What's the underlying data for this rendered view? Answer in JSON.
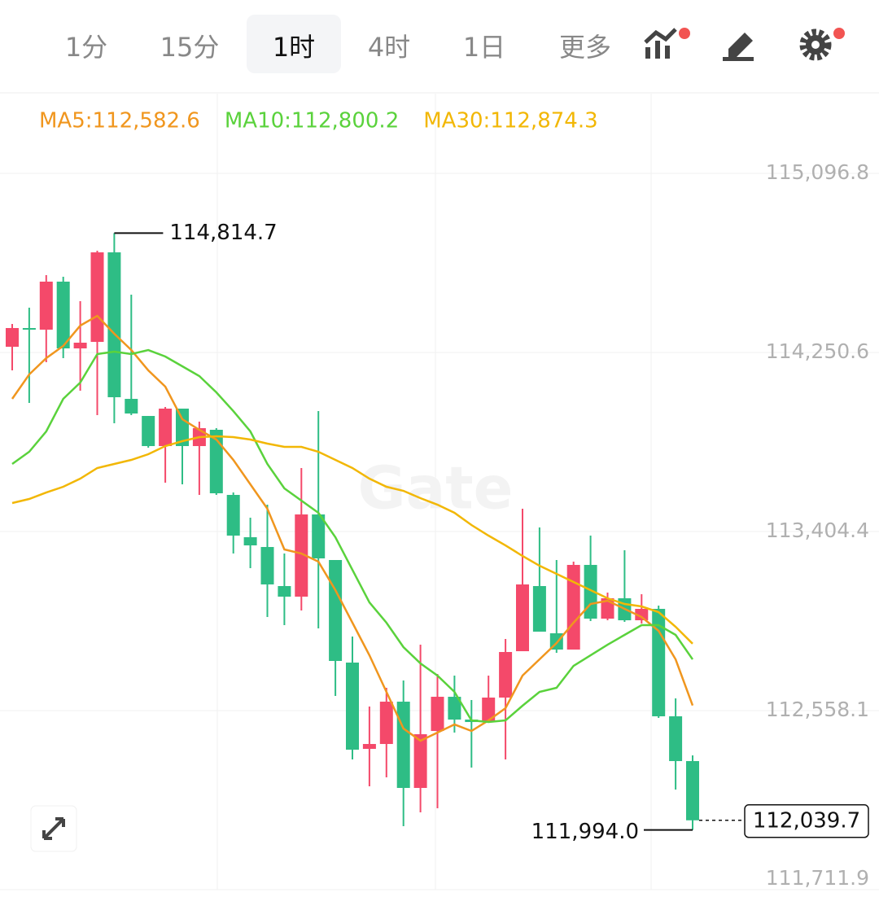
{
  "tabs": {
    "items": [
      "1分",
      "15分",
      "1时",
      "4时",
      "1日",
      "更多"
    ],
    "active": "1时"
  },
  "chart_data": {
    "type": "candlestick",
    "watermark": "Gate",
    "up_color": "#f4496a",
    "down_color": "#2ebd85",
    "open": [
      114277.6,
      114366.1,
      114358.4,
      114585.4,
      114269.9,
      114300.7,
      114723.8,
      114031.4,
      113950.6,
      113808.3,
      113985.3,
      113808.3,
      113885.3,
      113577.5,
      113377.5,
      113331.3,
      113146.7,
      113096.7,
      113485.2,
      113269.8,
      112785.1,
      112377.3,
      112400.4,
      112600.4,
      112192.7,
      112461.9,
      112623.5,
      112515.8,
      112504.2,
      112619.7,
      112838.9,
      113146.7,
      112923.5,
      112846.6,
      113246.7,
      112992.8,
      113089.0,
      112985.1,
      113039.0,
      112531.2,
      112319.6
    ],
    "high": [
      114385.3,
      114462.3,
      114616.1,
      114608.5,
      114493.0,
      114731.5,
      114814.7,
      114523.8,
      113950.6,
      113993.0,
      113985.3,
      113923.7,
      113892.9,
      113589.0,
      113469.8,
      113531.3,
      113300.5,
      113704.5,
      113973.7,
      113269.8,
      112908.2,
      112577.3,
      112665.8,
      112700.4,
      112869.7,
      112731.2,
      112723.5,
      112608.1,
      112723.5,
      112896.6,
      113512.1,
      113423.6,
      113269.8,
      113262.1,
      113385.2,
      113115.9,
      113315.9,
      113108.2,
      113054.3,
      112615.8,
      112346.5
    ],
    "low": [
      114166.1,
      114012.2,
      114204.5,
      114223.8,
      114069.9,
      113954.5,
      113916.0,
      113954.5,
      113800.6,
      113635.2,
      113627.5,
      113577.5,
      113577.5,
      113300.5,
      113231.3,
      113000.5,
      112962.0,
      113031.3,
      112946.6,
      112627.3,
      112327.3,
      112200.3,
      112242.7,
      112011.9,
      112077.3,
      112096.5,
      112454.2,
      112288.8,
      112500.4,
      112327.3,
      112838.9,
      112931.2,
      112831.2,
      112846.6,
      112981.3,
      112985.1,
      112977.4,
      112969.7,
      112523.5,
      112185.0,
      111994.0
    ],
    "close": [
      114366.1,
      114358.4,
      114585.4,
      114269.9,
      114296.9,
      114723.8,
      114039.1,
      113962.2,
      113808.3,
      113985.3,
      113808.3,
      113892.9,
      113585.2,
      113385.2,
      113339.0,
      113154.4,
      113096.7,
      113485.2,
      113277.5,
      112792.8,
      112373.5,
      112400.4,
      112600.4,
      112192.7,
      112446.5,
      112623.5,
      112515.8,
      112504.2,
      112619.7,
      112835.1,
      113154.4,
      112931.2,
      112846.6,
      113246.7,
      112992.8,
      113089.0,
      112985.1,
      113039.0,
      112531.2,
      112319.6,
      112039.7
    ],
    "high_label": "114,814.7",
    "low_label": "111,994.0",
    "last_label": "112,039.7",
    "series": [
      {
        "name": "MA5:112,582.6",
        "color": "#f0961e",
        "values": [
          114031.4,
          114146.8,
          114223.8,
          114281.5,
          114377.6,
          114423.8,
          114339.2,
          114262.2,
          114166.1,
          114089.1,
          113935.3,
          113885.3,
          113839.1,
          113742.9,
          113627.5,
          113512.1,
          113319.8,
          113300.5,
          113262.1,
          113127.4,
          112973.6,
          112819.7,
          112646.6,
          112473.5,
          112415.8,
          112454.2,
          112492.7,
          112461.9,
          112511.9,
          112569.6,
          112723.5,
          112800.4,
          112877.4,
          112973.6,
          113062.0,
          113077.4,
          113039.0,
          113000.5,
          112935.1,
          112800.4,
          112582.6
        ]
      },
      {
        "name": "MA10:112,800.2",
        "color": "#5ad23c",
        "values": [
          113723.7,
          113781.4,
          113877.6,
          114031.4,
          114108.4,
          114243.0,
          114254.5,
          114243.0,
          114262.2,
          114231.5,
          114185.3,
          114139.1,
          114062.2,
          113973.7,
          113877.6,
          113723.7,
          113608.3,
          113550.6,
          113492.9,
          113377.5,
          113223.6,
          113069.7,
          112973.6,
          112858.2,
          112781.2,
          112723.5,
          112646.6,
          112511.9,
          112504.2,
          112511.9,
          112581.2,
          112646.6,
          112665.8,
          112769.7,
          112819.7,
          112869.7,
          112915.9,
          112962.0,
          112962.0,
          112915.9,
          112800.2
        ]
      },
      {
        "name": "MA30:112,874.3",
        "color": "#f2b705",
        "values": [
          113539.0,
          113558.3,
          113589.0,
          113616.0,
          113654.4,
          113704.5,
          113723.7,
          113742.9,
          113769.8,
          113808.3,
          113831.4,
          113850.6,
          113854.5,
          113850.6,
          113839.1,
          113819.9,
          113804.5,
          113804.5,
          113781.4,
          113742.9,
          113704.5,
          113654.4,
          113616.0,
          113596.7,
          113562.1,
          113531.3,
          113492.9,
          113435.2,
          113385.2,
          113339.0,
          113289.0,
          113242.8,
          113204.4,
          113165.9,
          113127.4,
          113089.0,
          113062.0,
          113050.5,
          113023.6,
          112954.3,
          112874.3
        ]
      }
    ],
    "ylim": [
      111711.9,
      115474.0
    ],
    "yticks": [
      {
        "value": 111711.9,
        "label": "111,711.9"
      },
      {
        "value": 112558.1,
        "label": "112,558.1"
      },
      {
        "value": 113404.4,
        "label": "113,404.4"
      },
      {
        "value": 114250.6,
        "label": "114,250.6"
      },
      {
        "value": 115096.8,
        "label": "115,096.8"
      }
    ],
    "grid": true
  }
}
